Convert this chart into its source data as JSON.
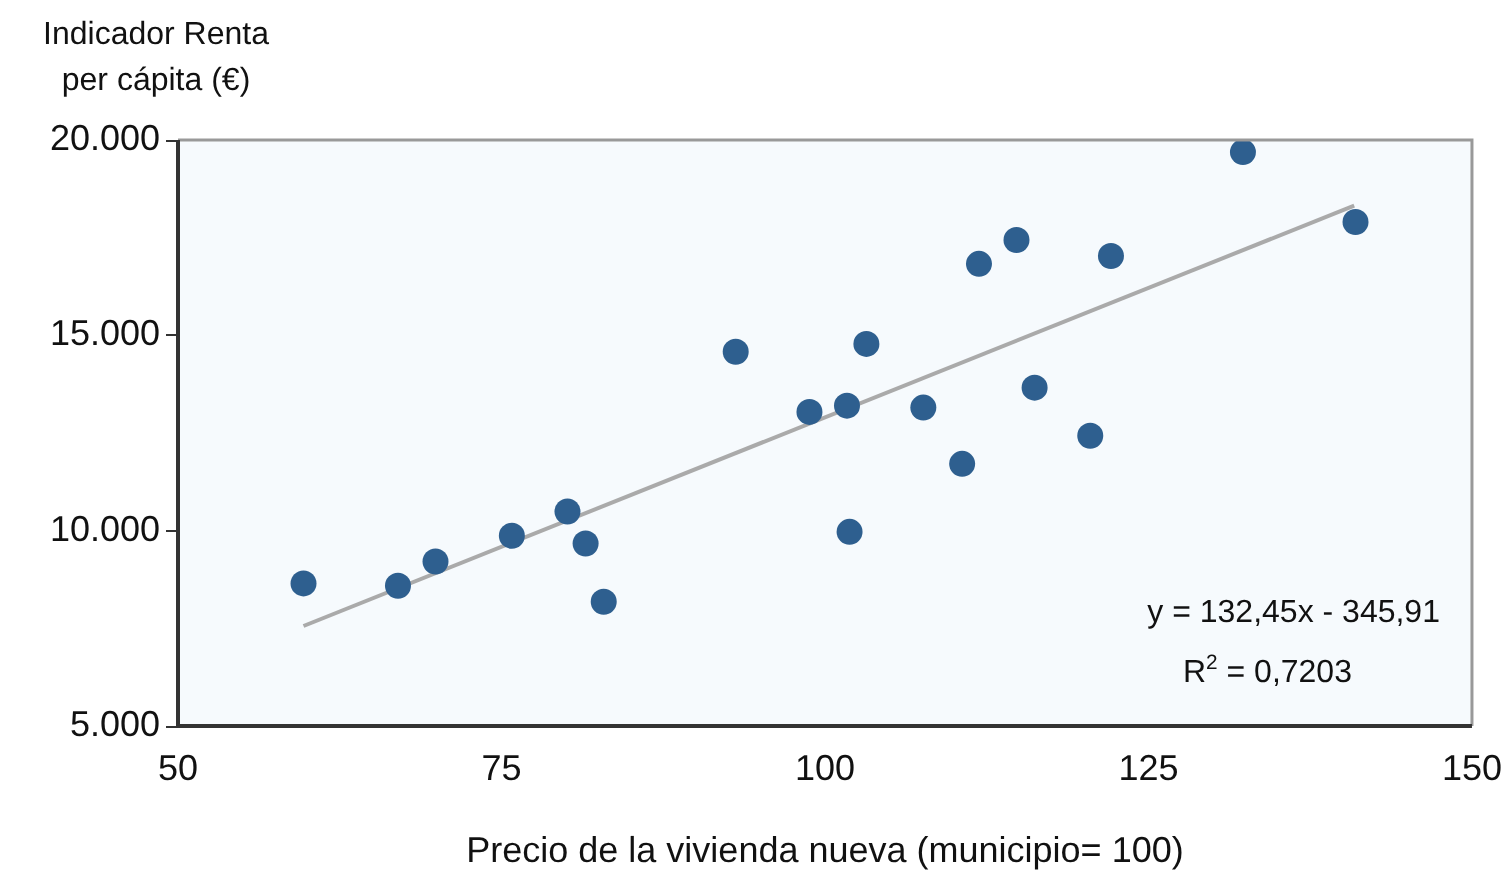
{
  "chart_data": {
    "type": "scatter",
    "xlabel": "Precio de la vivienda nueva (municipio= 100)",
    "ylabel": "Indicador Renta\nper cápita (€)",
    "x": [
      59.7,
      67.0,
      69.9,
      75.8,
      80.1,
      81.5,
      82.9,
      93.1,
      98.8,
      101.7,
      101.9,
      103.2,
      107.6,
      110.6,
      111.9,
      114.8,
      116.2,
      120.5,
      122.1,
      132.3,
      141.0
    ],
    "series": [
      {
        "type": "scatter",
        "color": "#2e5f8f",
        "marker": "circle",
        "values": [
          8650,
          8590,
          9210,
          9870,
          10490,
          9670,
          8180,
          14580,
          13040,
          13200,
          9970,
          14780,
          13150,
          11710,
          16830,
          17440,
          13660,
          12430,
          17030,
          19690,
          17900
        ]
      },
      {
        "type": "line",
        "color": "#aaaaaa",
        "marker": "none",
        "x": [
          59.7,
          140.9
        ],
        "values": [
          7560,
          18320
        ]
      }
    ],
    "xlim": [
      50,
      150
    ],
    "xticks": [
      50,
      75,
      100,
      125,
      150
    ],
    "ylim": [
      5000,
      20000
    ],
    "yticks": [
      {
        "value": 5000,
        "label": "5.000"
      },
      {
        "value": 10000,
        "label": "10.000"
      },
      {
        "value": 15000,
        "label": "15.000"
      },
      {
        "value": 20000,
        "label": "20.000"
      }
    ],
    "grid": false,
    "legend": false,
    "annotations": [
      "y = 132,45x - 345,91",
      "R$^{2}$ = 0,7203"
    ]
  }
}
